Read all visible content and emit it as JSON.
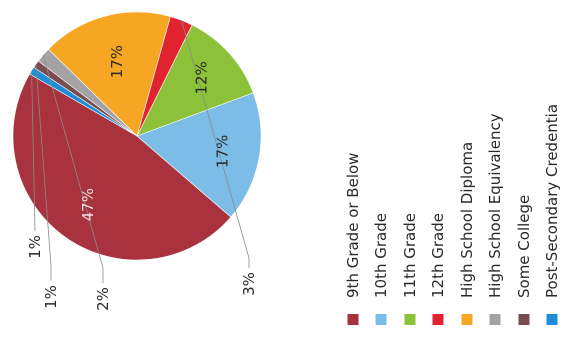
{
  "chart_data": {
    "type": "pie",
    "title": "",
    "categories": [
      "9th Grade or Below",
      "10th Grade",
      "11th Grade",
      "12th Grade",
      "High School Diploma",
      "High School Equivalency",
      "Some College",
      "Post-Secondary Credentia"
    ],
    "values": [
      47,
      17,
      12,
      3,
      17,
      2,
      1,
      1
    ],
    "labels": [
      "47%",
      "17%",
      "12%",
      "3%",
      "17%",
      "2%",
      "1%",
      "1%"
    ],
    "colors": [
      "#a8323e",
      "#7cbde8",
      "#8cc23a",
      "#e0232e",
      "#f6a623",
      "#a3a3a3",
      "#7b4b52",
      "#1d8ed6"
    ],
    "legend_position": "right",
    "orientation": "rotated 90° counter-clockwise"
  }
}
